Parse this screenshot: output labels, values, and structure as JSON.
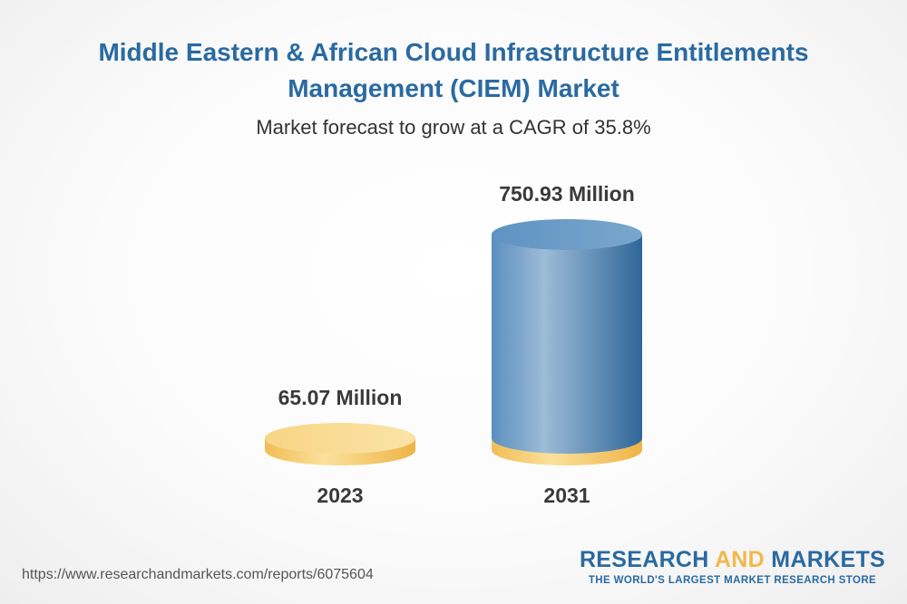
{
  "title": "Middle Eastern & African Cloud Infrastructure Entitlements Management (CIEM) Market",
  "subtitle": "Market forecast to grow at a CAGR of 35.8%",
  "footer": {
    "url": "https://www.researchandmarkets.com/reports/6075604",
    "brand_part1": "RESEARCH ",
    "brand_part2": "AND",
    "brand_part3": " MARKETS",
    "brand_tagline": "THE WORLD'S LARGEST MARKET RESEARCH STORE"
  },
  "colors": {
    "title": "#2a6aa1",
    "base_cylinder": "#f5c96a",
    "value_cylinder": "#4f86b8",
    "label": "#3a3a3a"
  },
  "chart_data": {
    "type": "bar",
    "categories": [
      "2023",
      "2031"
    ],
    "values": [
      65.07,
      750.93
    ],
    "value_labels": [
      "65.07 Million",
      "750.93 Million"
    ],
    "unit": "Million",
    "cagr": "35.8%"
  }
}
